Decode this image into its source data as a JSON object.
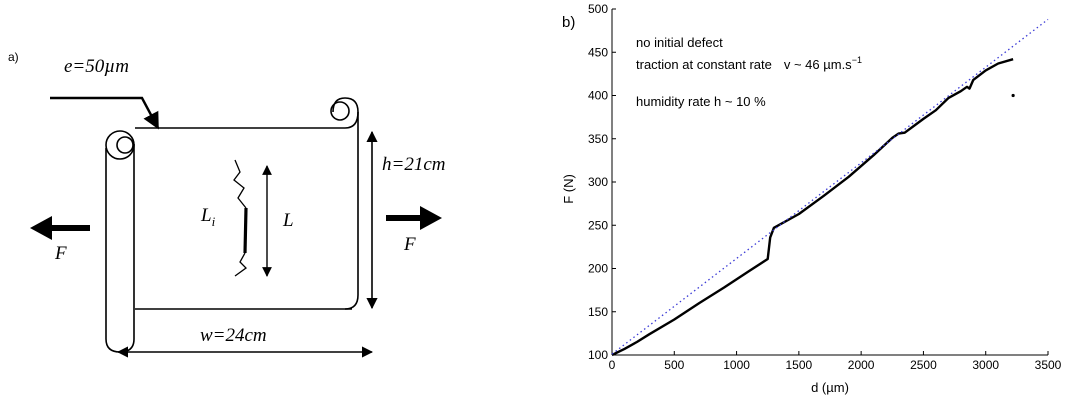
{
  "panel_a": {
    "label": "a)",
    "thickness": "e=50µm",
    "height": "h=21cm",
    "width": "w=24cm",
    "force": "F",
    "initial_crack": "L",
    "initial_crack_sub": "i",
    "crack_length": "L"
  },
  "panel_b": {
    "label": "b)",
    "annotations": {
      "line1": "no initial defect",
      "line2_prefix": "traction at constant rate",
      "line2_rate": "v ~ 46 µm.s",
      "line2_exp": "−1",
      "line3": "humidity rate h ~ 10 %"
    }
  },
  "chart_data": {
    "type": "line",
    "title": "",
    "xlabel": "d (µm)",
    "ylabel": "F (N)",
    "xlim": [
      0,
      3500
    ],
    "ylim": [
      100,
      500
    ],
    "xticks": [
      0,
      500,
      1000,
      1500,
      2000,
      2500,
      3000,
      3500
    ],
    "yticks": [
      100,
      150,
      200,
      250,
      300,
      350,
      400,
      450,
      500
    ],
    "grid": false,
    "series": [
      {
        "style": "solid-black",
        "x": [
          0,
          100,
          200,
          300,
          500,
          700,
          900,
          1100,
          1250,
          1270,
          1300,
          1500,
          1700,
          1900,
          2100,
          2250,
          2300,
          2350,
          2500,
          2600,
          2700,
          2800,
          2850,
          2870,
          2900,
          3000,
          3100,
          3220
        ],
        "y": [
          100,
          107,
          115,
          124,
          141,
          160,
          178,
          197,
          211,
          236,
          247,
          263,
          284,
          306,
          331,
          351,
          356,
          357,
          373,
          383,
          397,
          405,
          410,
          408,
          418,
          429,
          437,
          442
        ]
      },
      {
        "style": "dotted-blue",
        "x": [
          0,
          3500
        ],
        "y": [
          101,
          488
        ]
      }
    ],
    "outliers": [
      {
        "x": 3220,
        "y": 400
      }
    ]
  }
}
